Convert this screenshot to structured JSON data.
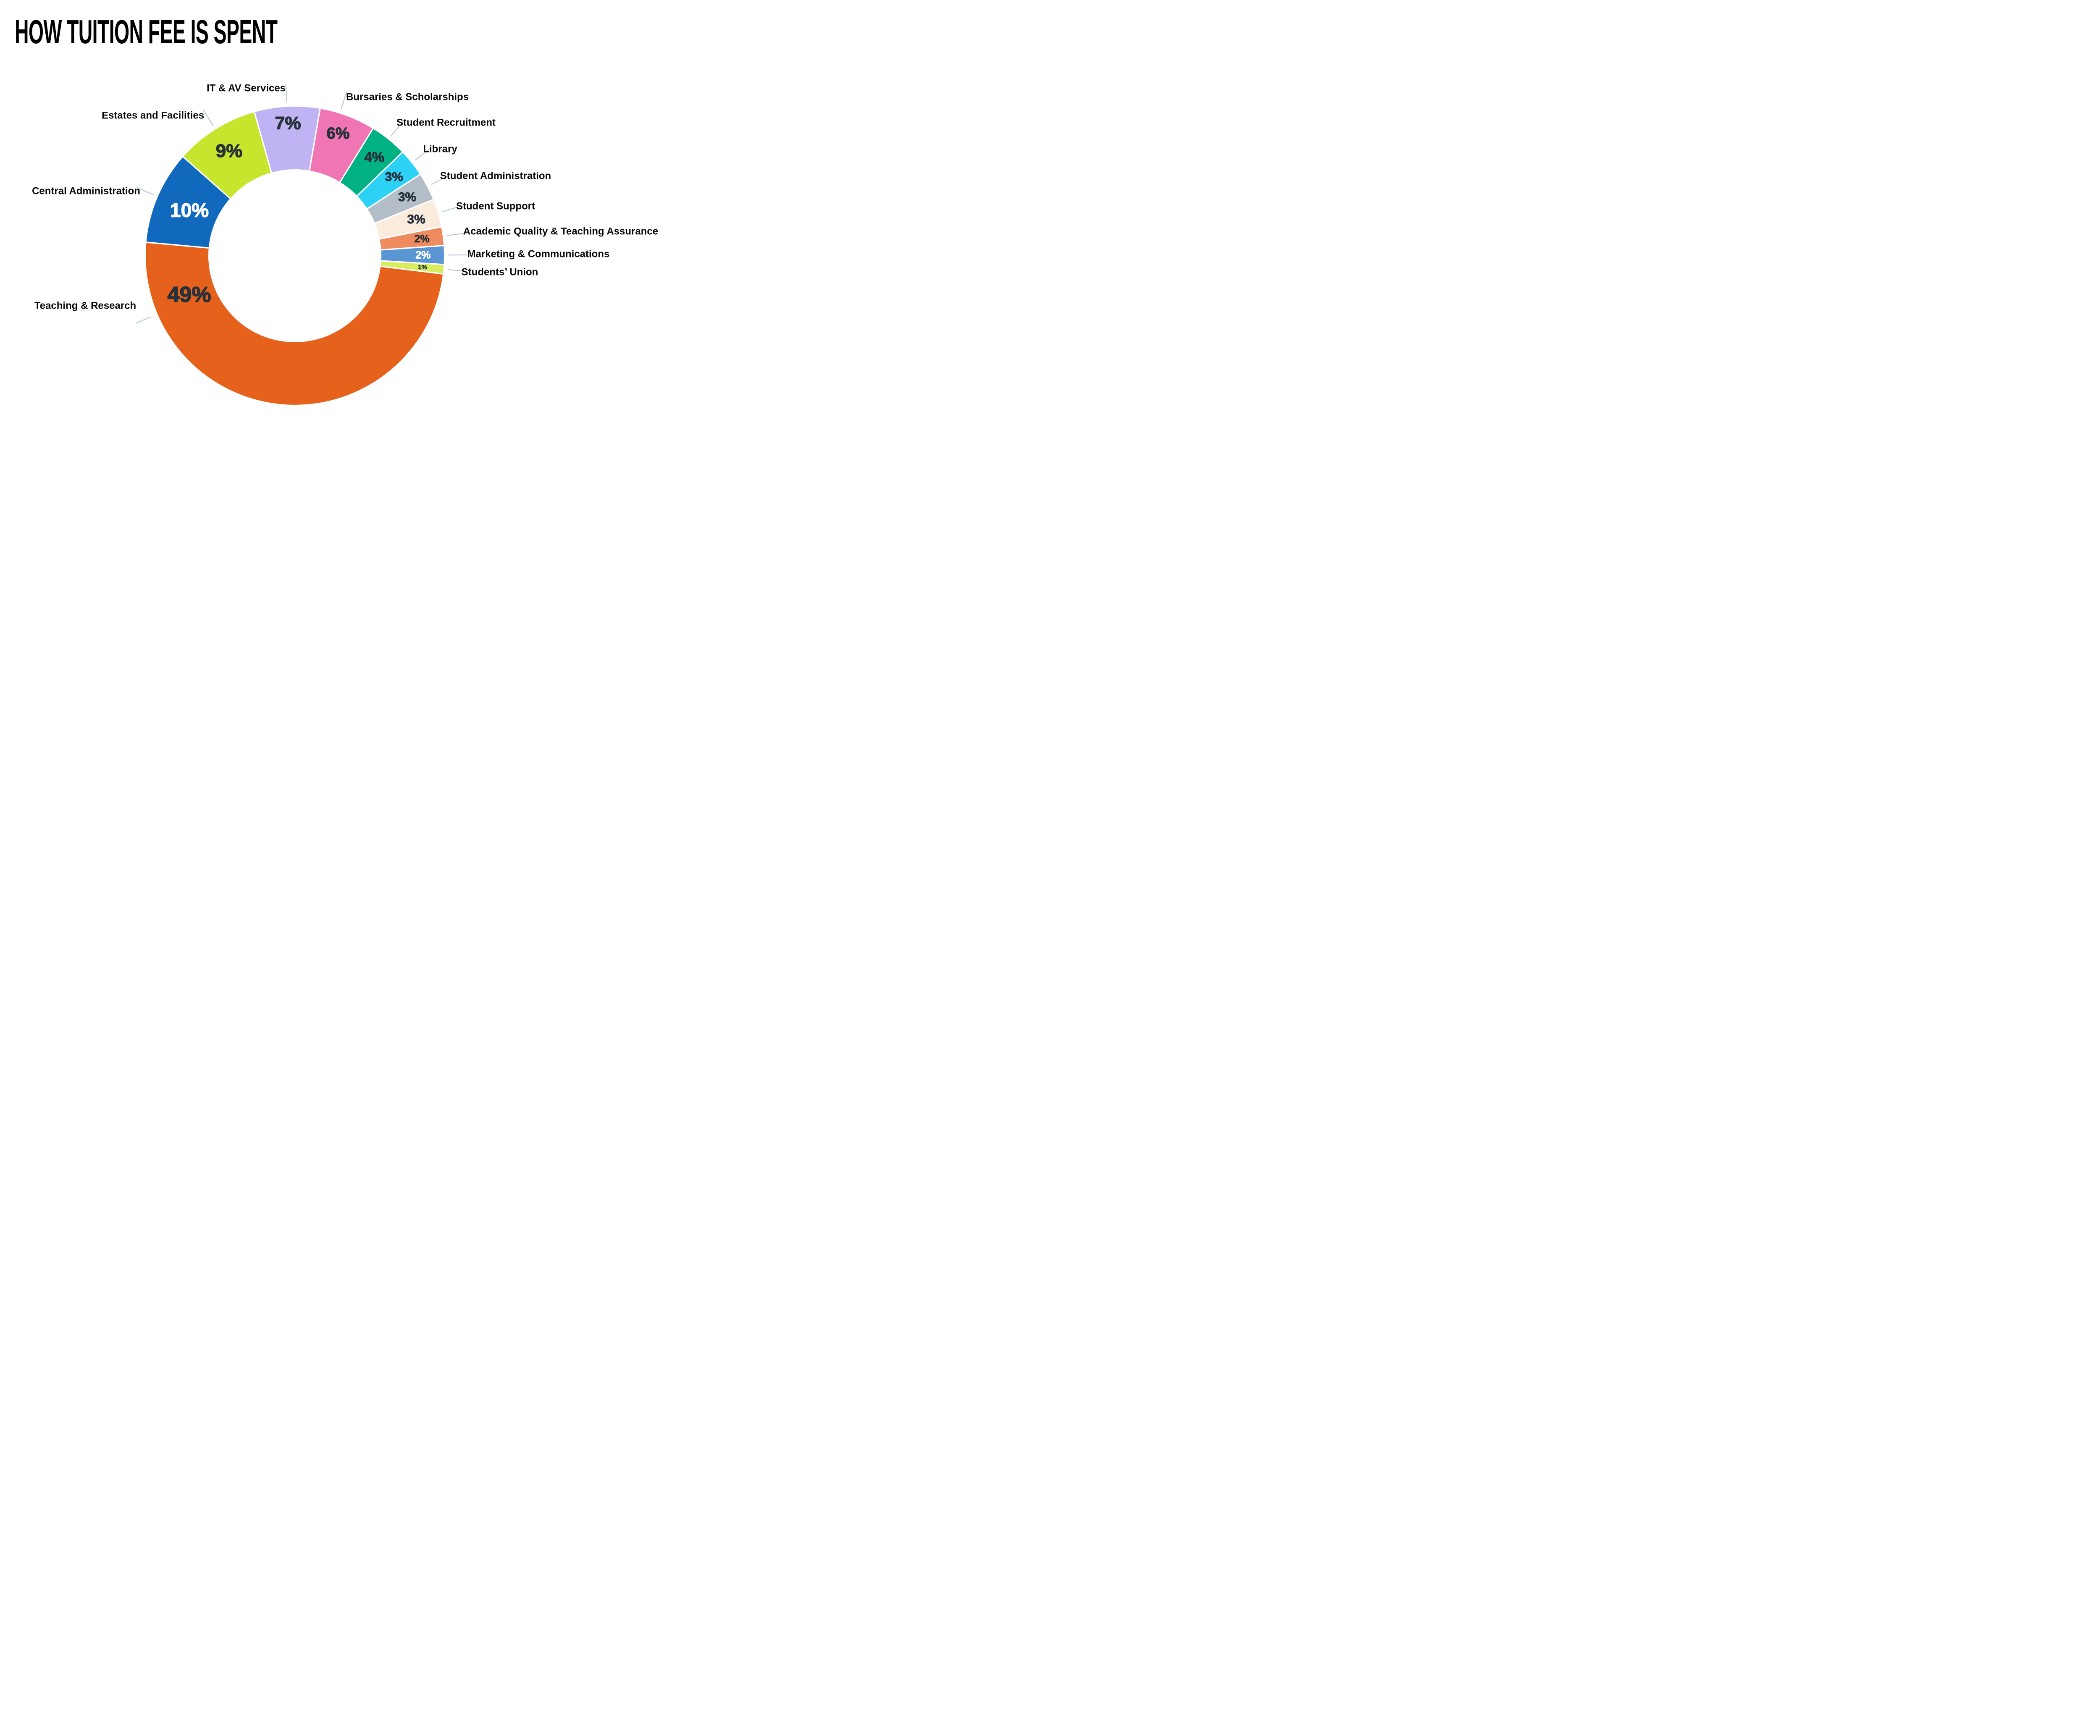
{
  "chart_data": {
    "type": "pie",
    "subtype": "donut",
    "title": "HOW TUITION FEE IS SPENT",
    "unit": "%",
    "grid": false,
    "legend_position": "labels-around-donut",
    "background_color": "#FFFFFF",
    "category_label_color": "#0A0A0A",
    "leader_line_color": "#B8C8D5",
    "title_color": "#000000",
    "segments": [
      {
        "label": "Teaching & Research",
        "value": 49,
        "value_label": "49%",
        "color": "#E6621C",
        "value_text_color": "#27313A"
      },
      {
        "label": "Central Administration",
        "value": 10,
        "value_label": "10%",
        "color": "#1169BE",
        "value_text_color": "#FFFFFF"
      },
      {
        "label": "Estates and Facilities",
        "value": 9,
        "value_label": "9%",
        "color": "#C8E52D",
        "value_text_color": "#27313A"
      },
      {
        "label": "IT & AV Services",
        "value": 7,
        "value_label": "7%",
        "color": "#BFB3F4",
        "value_text_color": "#27313A"
      },
      {
        "label": "Bursaries & Scholarships",
        "value": 6,
        "value_label": "6%",
        "color": "#F075B4",
        "value_text_color": "#27313A"
      },
      {
        "label": "Student Recruitment",
        "value": 4,
        "value_label": "4%",
        "color": "#00B184",
        "value_text_color": "#27313A"
      },
      {
        "label": "Library",
        "value": 3,
        "value_label": "3%",
        "color": "#2BD2F6",
        "value_text_color": "#27313A"
      },
      {
        "label": "Student Administration",
        "value": 3,
        "value_label": "3%",
        "color": "#B4BEC8",
        "value_text_color": "#27313A"
      },
      {
        "label": "Student Support",
        "value": 3,
        "value_label": "3%",
        "color": "#FAEBDC",
        "value_text_color": "#27313A"
      },
      {
        "label": "Academic Quality & Teaching Assurance",
        "value": 2,
        "value_label": "2%",
        "color": "#EE8B5F",
        "value_text_color": "#27313A"
      },
      {
        "label": "Marketing & Communications",
        "value": 2,
        "value_label": "2%",
        "color": "#5B96D4",
        "value_text_color": "#FFFFFF"
      },
      {
        "label": "Students’ Union",
        "value": 1,
        "value_label": "1%",
        "color": "#D8EC60",
        "value_text_color": "#27313A"
      }
    ]
  }
}
